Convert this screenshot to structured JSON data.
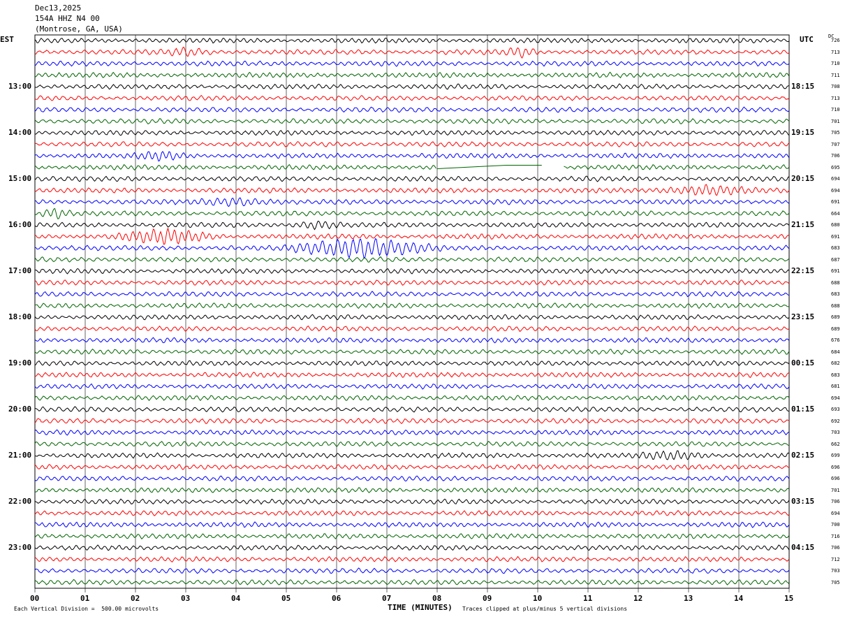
{
  "header": {
    "date": "Dec13,2025",
    "station": "154A HHZ N4 00",
    "location": "(Montrose, GA, USA)"
  },
  "left_tz": "EST",
  "right_tz": "UTC",
  "dc_label": "DC",
  "left_labels": [
    "13:00",
    "14:00",
    "15:00",
    "16:00",
    "17:00",
    "18:00",
    "19:00",
    "20:00",
    "21:00",
    "22:00",
    "23:00"
  ],
  "right_labels": [
    "18:15",
    "19:15",
    "20:15",
    "21:15",
    "22:15",
    "23:15",
    "00:15",
    "01:15",
    "02:15",
    "03:15",
    "04:15"
  ],
  "dc_values": [
    "726",
    "713",
    "710",
    "711",
    "708",
    "713",
    "710",
    "701",
    "705",
    "707",
    "706",
    "695",
    "694",
    "694",
    "691",
    "664",
    "680",
    "691",
    "683",
    "687",
    "691",
    "688",
    "683",
    "688",
    "689",
    "689",
    "676",
    "684",
    "682",
    "683",
    "681",
    "694",
    "693",
    "692",
    "703",
    "662",
    "699",
    "696",
    "696",
    "701",
    "706",
    "694",
    "700",
    "716",
    "706",
    "712",
    "703",
    "705"
  ],
  "x_ticks": [
    "00",
    "01",
    "02",
    "03",
    "04",
    "05",
    "06",
    "07",
    "08",
    "09",
    "10",
    "11",
    "12",
    "13",
    "14",
    "15"
  ],
  "x_axis_title": "TIME (MINUTES)",
  "footer_left": "Each Vertical Division =  500.00 microvolts",
  "footer_right": "Traces clipped at plus/minus 5 vertical divisions",
  "colors": {
    "trace_cycle": [
      "#000000",
      "#ff0000",
      "#0000ff",
      "#006400"
    ],
    "grid": "#000000"
  },
  "chart_data": {
    "type": "line",
    "title": "154A HHZ N4 00",
    "xlabel": "TIME (MINUTES)",
    "xlim": [
      0,
      15
    ],
    "rows": 48,
    "row_minutes": 15,
    "events": [
      {
        "row": 1,
        "start": 9.2,
        "end": 10.1,
        "amp": 1.8
      },
      {
        "row": 1,
        "start": 2.4,
        "end": 3.6,
        "amp": 1.4
      },
      {
        "row": 10,
        "start": 1.8,
        "end": 3.2,
        "amp": 1.6
      },
      {
        "row": 13,
        "start": 12.2,
        "end": 14.5,
        "amp": 1.9
      },
      {
        "row": 14,
        "start": 3.0,
        "end": 5.0,
        "amp": 1.6
      },
      {
        "row": 15,
        "start": 0.0,
        "end": 0.8,
        "amp": 2.2
      },
      {
        "row": 16,
        "start": 5.0,
        "end": 6.2,
        "amp": 1.5
      },
      {
        "row": 17,
        "start": 1.4,
        "end": 3.8,
        "amp": 3.0
      },
      {
        "row": 18,
        "start": 4.8,
        "end": 8.2,
        "amp": 4.5
      },
      {
        "row": 36,
        "start": 11.8,
        "end": 13.6,
        "amp": 1.5
      }
    ],
    "gaps": [
      {
        "row": 11,
        "start": 8.0,
        "end": 10.5
      }
    ]
  }
}
